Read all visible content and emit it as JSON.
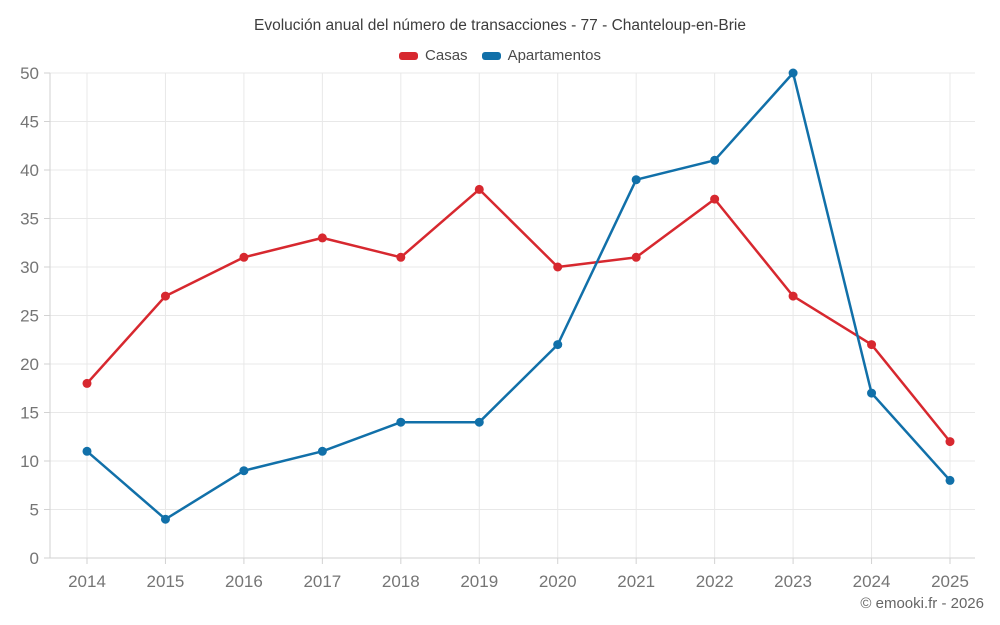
{
  "title": "Evolución anual del número de transacciones - 77 - Chanteloup-en-Brie",
  "footer": "© emooki.fr - 2026",
  "colors": {
    "casas": "#d7282f",
    "apartamentos": "#1170a9",
    "grid": "#e8e8e8",
    "axis": "#d2d2d2",
    "tick_label": "#757575",
    "title_text": "#3d3d3d",
    "background": "#ffffff"
  },
  "chart_data": {
    "type": "line",
    "title": "Evolución anual del número de transacciones - 77 - Chanteloup-en-Brie",
    "x": [
      2014,
      2015,
      2016,
      2017,
      2018,
      2019,
      2020,
      2021,
      2022,
      2023,
      2024,
      2025
    ],
    "series": [
      {
        "name": "Casas",
        "color": "#d7282f",
        "values": [
          18,
          27,
          31,
          33,
          31,
          38,
          30,
          31,
          37,
          27,
          22,
          12
        ]
      },
      {
        "name": "Apartamentos",
        "color": "#1170a9",
        "values": [
          11,
          4,
          9,
          11,
          14,
          14,
          22,
          39,
          41,
          50,
          17,
          8
        ]
      }
    ],
    "xlabel": "",
    "ylabel": "",
    "ylim": [
      0,
      50
    ],
    "yticks": [
      0,
      5,
      10,
      15,
      20,
      25,
      30,
      35,
      40,
      45,
      50
    ],
    "grid": true,
    "legend_position": "top",
    "marker": "circle"
  }
}
